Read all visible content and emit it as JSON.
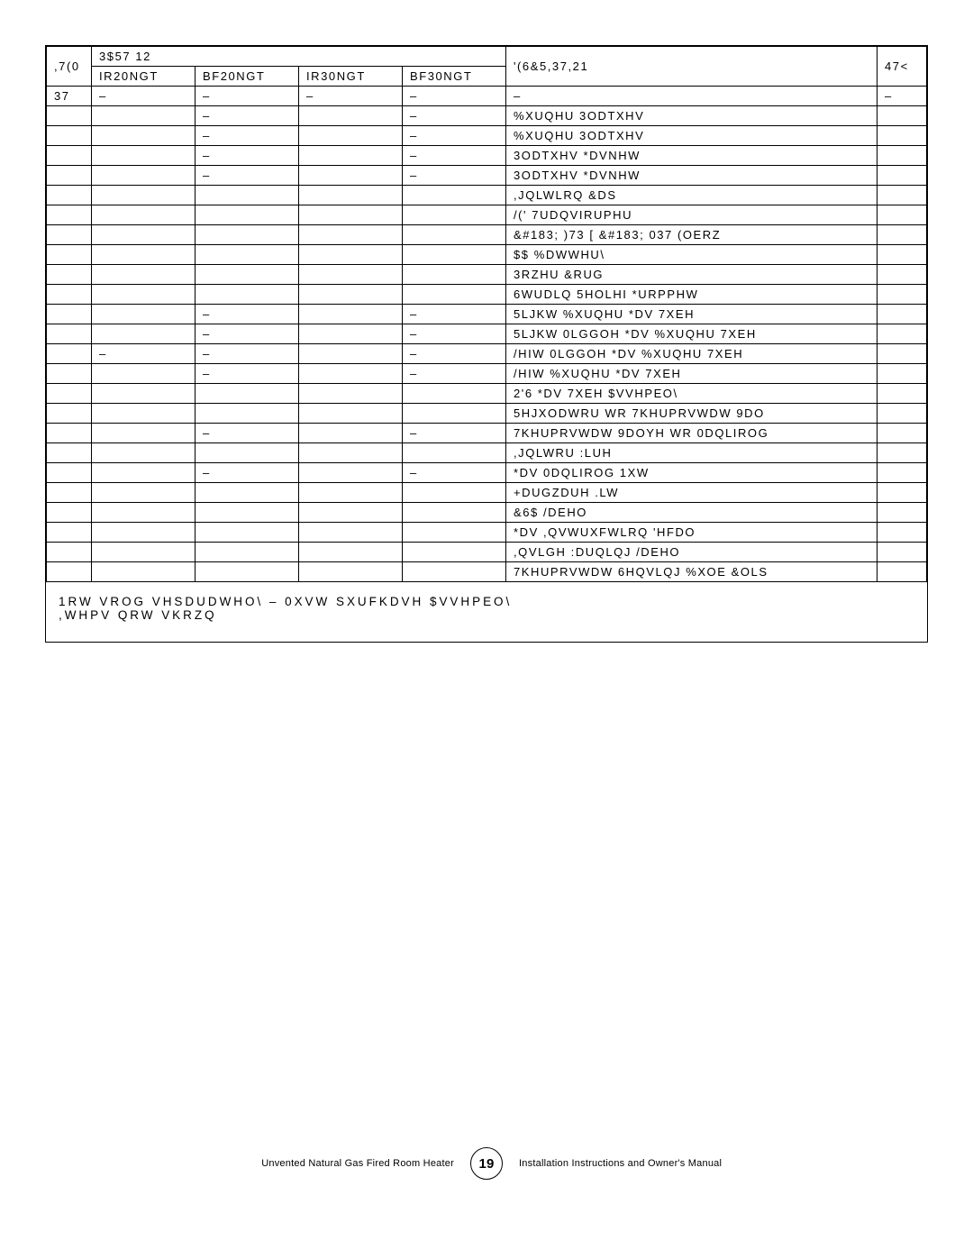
{
  "table": {
    "header": {
      "item": ",7(0",
      "partno": "3$57 12",
      "description": "'(6&5,37,21",
      "qty": "47<"
    },
    "model_sub": [
      "IR20NGT",
      "BF20NGT",
      "IR30NGT",
      "BF30NGT"
    ],
    "rows": [
      {
        "item": "37",
        "m1": "–",
        "m2": "–",
        "m3": "–",
        "m4": "–",
        "desc": "–",
        "qty": "–"
      },
      {
        "item": "",
        "m1": "",
        "m2": "–",
        "m3": "",
        "m4": "–",
        "desc": "%XUQHU 3ODTXHV",
        "qty": ""
      },
      {
        "item": "",
        "m1": "",
        "m2": "–",
        "m3": "",
        "m4": "–",
        "desc": "%XUQHU 3ODTXHV",
        "qty": ""
      },
      {
        "item": "",
        "m1": "",
        "m2": "–",
        "m3": "",
        "m4": "–",
        "desc": "3ODTXHV *DVNHW",
        "qty": ""
      },
      {
        "item": "",
        "m1": "",
        "m2": "–",
        "m3": "",
        "m4": "–",
        "desc": "3ODTXHV *DVNHW",
        "qty": ""
      },
      {
        "item": "",
        "m1": "",
        "m2": "",
        "m3": "",
        "m4": "",
        "desc": ",JQLWLRQ &DS",
        "qty": ""
      },
      {
        "item": "",
        "m1": "",
        "m2": "",
        "m3": "",
        "m4": "",
        "desc": "/(' 7UDQVIRUPHU",
        "qty": ""
      },
      {
        "item": "",
        "m1": "",
        "m2": "",
        "m3": "",
        "m4": "",
        "desc": "&#183; )73 [ &#183; 037 (OERZ",
        "qty": ""
      },
      {
        "item": "",
        "m1": "",
        "m2": "",
        "m3": "",
        "m4": "",
        "desc": "$$ %DWWHU\\",
        "qty": ""
      },
      {
        "item": "",
        "m1": "",
        "m2": "",
        "m3": "",
        "m4": "",
        "desc": "3RZHU &RUG",
        "qty": ""
      },
      {
        "item": "",
        "m1": "",
        "m2": "",
        "m3": "",
        "m4": "",
        "desc": "6WUDLQ 5HOLHI *URPPHW",
        "qty": ""
      },
      {
        "item": "",
        "m1": "",
        "m2": "–",
        "m3": "",
        "m4": "–",
        "desc": "5LJKW %XUQHU *DV 7XEH",
        "qty": ""
      },
      {
        "item": "",
        "m1": "",
        "m2": "–",
        "m3": "",
        "m4": "–",
        "desc": "5LJKW 0LGGOH *DV %XUQHU 7XEH",
        "qty": ""
      },
      {
        "item": "",
        "m1": "–",
        "m2": "–",
        "m3": "",
        "m4": "–",
        "desc": "/HIW 0LGGOH *DV %XUQHU 7XEH",
        "qty": ""
      },
      {
        "item": "",
        "m1": "",
        "m2": "–",
        "m3": "",
        "m4": "–",
        "desc": "/HIW %XUQHU *DV 7XEH",
        "qty": ""
      },
      {
        "item": "",
        "m1": "",
        "m2": "",
        "m3": "",
        "m4": "",
        "desc": "2'6 *DV 7XEH $VVHPEO\\",
        "qty": ""
      },
      {
        "item": "",
        "m1": "",
        "m2": "",
        "m3": "",
        "m4": "",
        "desc": "5HJXODWRU WR 7KHUPRVWDW 9DO",
        "qty": ""
      },
      {
        "item": "",
        "m1": "",
        "m2": "–",
        "m3": "",
        "m4": "–",
        "desc": "7KHUPRVWDW 9DOYH WR 0DQLIROG",
        "qty": ""
      },
      {
        "item": "",
        "m1": "",
        "m2": "",
        "m3": "",
        "m4": "",
        "desc": ",JQLWRU :LUH",
        "qty": ""
      },
      {
        "item": "",
        "m1": "",
        "m2": "–",
        "m3": "",
        "m4": "–",
        "desc": "*DV 0DQLIROG 1XW",
        "qty": ""
      },
      {
        "item": "",
        "m1": "",
        "m2": "",
        "m3": "",
        "m4": "",
        "desc": "+DUGZDUH .LW",
        "qty": ""
      },
      {
        "item": "",
        "m1": "",
        "m2": "",
        "m3": "",
        "m4": "",
        "desc": "&6$ /DEHO",
        "qty": ""
      },
      {
        "item": "",
        "m1": "",
        "m2": "",
        "m3": "",
        "m4": "",
        "desc": "*DV ,QVWUXFWLRQ 'HFDO",
        "qty": ""
      },
      {
        "item": "",
        "m1": "",
        "m2": "",
        "m3": "",
        "m4": "",
        "desc": ",QVLGH :DUQLQJ /DEHO",
        "qty": ""
      },
      {
        "item": "",
        "m1": "",
        "m2": "",
        "m3": "",
        "m4": "",
        "desc": "7KHUPRVWDW 6HQVLQJ %XOE &OLS",
        "qty": ""
      }
    ],
    "footnote_line1": "1RW VROG VHSDUDWHO\\ – 0XVW SXUFKDVH $VVHPEO\\",
    "footnote_line2": ",WHPV QRW VKRZQ"
  },
  "footer": {
    "left": "Unvented Natural Gas Fired Room Heater",
    "page": "19",
    "right": "Installation Instructions and Owner's Manual"
  }
}
